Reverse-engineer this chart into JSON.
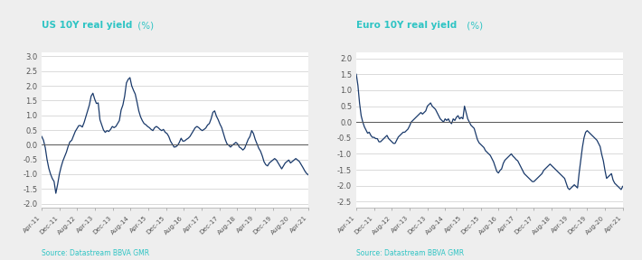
{
  "title1_bold": "US 10Y real yield",
  "title1_light": " (%)",
  "title2_bold": "Euro 10Y real yield",
  "title2_light": " (%)",
  "source": "Source: Datastream BBVA GMR",
  "title_color": "#2ec4c4",
  "source_color": "#2ec4c4",
  "line_color": "#1a3a6b",
  "background_color": "#eeeeee",
  "plot_bg_color": "#ffffff",
  "grid_color": "#cccccc",
  "zero_line_color": "#555555",
  "x_tick_labels": [
    "Apr-11",
    "Dec-11",
    "Aug-12",
    "Apr-13",
    "Dec-13",
    "Aug-14",
    "Apr-15",
    "Dec-15",
    "Aug-16",
    "Apr-17",
    "Dec-17",
    "Aug-18",
    "Apr-19",
    "Dec-19",
    "Aug-20",
    "Apr-21"
  ],
  "us_ylim": [
    -2.15,
    3.15
  ],
  "us_yticks": [
    -2.0,
    -1.5,
    -1.0,
    -0.5,
    0.0,
    0.5,
    1.0,
    1.5,
    2.0,
    2.5,
    3.0
  ],
  "eur_ylim": [
    -2.7,
    2.2
  ],
  "eur_yticks": [
    -2.5,
    -2.0,
    -1.5,
    -1.0,
    -0.5,
    0.0,
    0.5,
    1.0,
    1.5,
    2.0
  ],
  "us_data": [
    0.28,
    0.15,
    -0.1,
    -0.5,
    -0.8,
    -1.0,
    -1.15,
    -1.25,
    -1.65,
    -1.35,
    -1.0,
    -0.75,
    -0.55,
    -0.4,
    -0.25,
    -0.05,
    0.1,
    0.15,
    0.3,
    0.45,
    0.55,
    0.65,
    0.65,
    0.6,
    0.75,
    0.95,
    1.15,
    1.35,
    1.65,
    1.75,
    1.55,
    1.4,
    1.42,
    0.85,
    0.68,
    0.5,
    0.42,
    0.48,
    0.45,
    0.52,
    0.62,
    0.58,
    0.62,
    0.72,
    0.82,
    1.18,
    1.35,
    1.65,
    2.1,
    2.22,
    2.28,
    2.0,
    1.85,
    1.72,
    1.45,
    1.15,
    0.95,
    0.82,
    0.72,
    0.68,
    0.62,
    0.58,
    0.52,
    0.48,
    0.58,
    0.62,
    0.58,
    0.52,
    0.48,
    0.52,
    0.42,
    0.38,
    0.28,
    0.12,
    0.02,
    -0.08,
    -0.07,
    -0.02,
    0.08,
    0.22,
    0.12,
    0.13,
    0.18,
    0.22,
    0.28,
    0.38,
    0.48,
    0.58,
    0.62,
    0.58,
    0.52,
    0.48,
    0.52,
    0.57,
    0.67,
    0.72,
    0.88,
    1.1,
    1.15,
    0.97,
    0.85,
    0.7,
    0.58,
    0.38,
    0.18,
    0.03,
    -0.02,
    -0.08,
    -0.02,
    0.03,
    0.08,
    0.03,
    -0.08,
    -0.12,
    -0.18,
    -0.12,
    0.03,
    0.18,
    0.28,
    0.48,
    0.38,
    0.18,
    0.03,
    -0.12,
    -0.22,
    -0.38,
    -0.58,
    -0.68,
    -0.72,
    -0.62,
    -0.57,
    -0.52,
    -0.47,
    -0.52,
    -0.62,
    -0.72,
    -0.82,
    -0.72,
    -0.62,
    -0.57,
    -0.52,
    -0.62,
    -0.57,
    -0.52,
    -0.47,
    -0.52,
    -0.57,
    -0.67,
    -0.77,
    -0.88,
    -0.97,
    -1.02
  ],
  "eur_data": [
    1.5,
    1.15,
    0.6,
    0.2,
    0.0,
    -0.15,
    -0.25,
    -0.35,
    -0.32,
    -0.42,
    -0.48,
    -0.48,
    -0.52,
    -0.52,
    -0.62,
    -0.62,
    -0.57,
    -0.52,
    -0.47,
    -0.42,
    -0.52,
    -0.57,
    -0.62,
    -0.67,
    -0.67,
    -0.57,
    -0.47,
    -0.42,
    -0.37,
    -0.32,
    -0.32,
    -0.27,
    -0.22,
    -0.12,
    0.0,
    0.05,
    0.1,
    0.15,
    0.2,
    0.25,
    0.3,
    0.25,
    0.3,
    0.35,
    0.5,
    0.55,
    0.6,
    0.5,
    0.45,
    0.4,
    0.3,
    0.2,
    0.1,
    0.05,
    0.0,
    0.1,
    0.05,
    0.1,
    0.0,
    -0.05,
    0.1,
    0.05,
    0.15,
    0.2,
    0.1,
    0.15,
    0.1,
    0.5,
    0.3,
    0.1,
    0.0,
    -0.1,
    -0.15,
    -0.2,
    -0.38,
    -0.55,
    -0.65,
    -0.7,
    -0.75,
    -0.8,
    -0.9,
    -0.95,
    -1.0,
    -1.05,
    -1.15,
    -1.25,
    -1.4,
    -1.55,
    -1.6,
    -1.52,
    -1.47,
    -1.3,
    -1.2,
    -1.15,
    -1.1,
    -1.05,
    -1.0,
    -1.07,
    -1.12,
    -1.18,
    -1.22,
    -1.32,
    -1.42,
    -1.52,
    -1.62,
    -1.67,
    -1.72,
    -1.77,
    -1.82,
    -1.87,
    -1.87,
    -1.82,
    -1.77,
    -1.72,
    -1.67,
    -1.62,
    -1.52,
    -1.47,
    -1.42,
    -1.37,
    -1.32,
    -1.37,
    -1.42,
    -1.47,
    -1.52,
    -1.57,
    -1.62,
    -1.67,
    -1.72,
    -1.77,
    -1.92,
    -2.07,
    -2.12,
    -2.07,
    -2.02,
    -1.97,
    -2.02,
    -2.07,
    -1.6,
    -1.2,
    -0.8,
    -0.5,
    -0.32,
    -0.27,
    -0.32,
    -0.37,
    -0.42,
    -0.47,
    -0.52,
    -0.57,
    -0.67,
    -0.77,
    -1.02,
    -1.22,
    -1.52,
    -1.77,
    -1.72,
    -1.67,
    -1.62,
    -1.82,
    -1.92,
    -1.97,
    -2.02,
    -2.07,
    -2.12,
    -2.02
  ]
}
